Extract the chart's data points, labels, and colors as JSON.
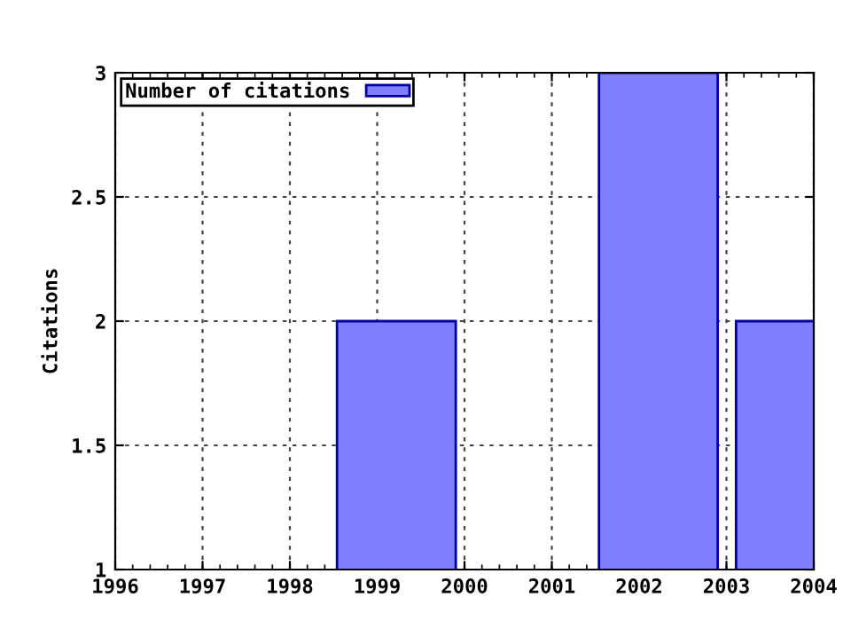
{
  "chart_data": {
    "type": "bar",
    "ylabel": "Citations",
    "x": [
      1999.22,
      2002.22,
      2003.79
    ],
    "series": [
      {
        "name": "Number of citations",
        "color": "#8080ff",
        "values": [
          2,
          3,
          2
        ]
      }
    ],
    "xlim": [
      1996,
      2004
    ],
    "xticks": [
      1996,
      1997,
      1998,
      1999,
      2000,
      2001,
      2002,
      2003,
      2004
    ],
    "ylim": [
      1,
      3
    ],
    "yticks": [
      1,
      1.5,
      2,
      2.5,
      3
    ],
    "grid": true,
    "legend": "top left"
  }
}
